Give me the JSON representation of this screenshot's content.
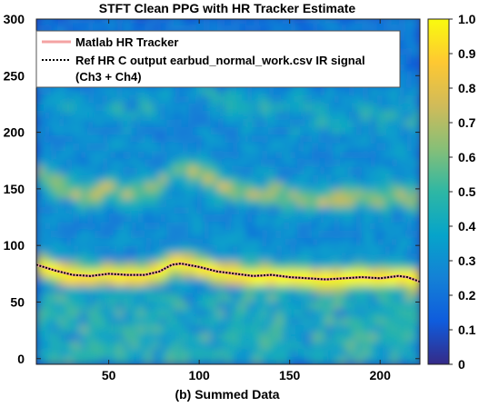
{
  "chart_data": {
    "type": "heatmap",
    "title": "STFT Clean PPG with HR Tracker Estimate",
    "xlabel": "(b) Summed Data",
    "ylabel": "",
    "xlim": [
      10,
      222
    ],
    "ylim": [
      -5,
      300
    ],
    "xticks": [
      50,
      100,
      150,
      200
    ],
    "yticks": [
      0,
      50,
      100,
      150,
      200,
      250,
      300
    ],
    "colorbar": {
      "range": [
        0,
        1
      ],
      "ticks": [
        0,
        0.1,
        0.2,
        0.3,
        0.4,
        0.5,
        0.6,
        0.7,
        0.8,
        0.9,
        1.0
      ],
      "tick_labels": [
        "0",
        "0.1",
        "0.2",
        "0.3",
        "0.4",
        "0.5",
        "0.6",
        "0.7",
        "0.8",
        "0.9",
        "1.0"
      ],
      "colormap": "parula"
    },
    "legend": {
      "placement": "top-left",
      "entries": [
        {
          "label": "Matlab HR Tracker",
          "color": "#f4a3a3",
          "style": "solid"
        },
        {
          "label": "Ref HR C output earbud_normal_work.csv IR signal",
          "label_line2": "(Ch3 + Ch4)",
          "color": "#000000",
          "style": "dotted"
        }
      ]
    },
    "series": [
      {
        "name": "Matlab HR Tracker",
        "x": [
          10,
          20,
          30,
          40,
          50,
          60,
          70,
          78,
          85,
          90,
          100,
          110,
          120,
          130,
          140,
          150,
          160,
          170,
          180,
          190,
          200,
          210,
          215,
          222
        ],
        "y": [
          83,
          78,
          74,
          73,
          75,
          74,
          74,
          77,
          83,
          84,
          81,
          77,
          75,
          73,
          74,
          72,
          71,
          70,
          71,
          72,
          71,
          73,
          72,
          68
        ]
      },
      {
        "name": "Ref HR C output earbud_normal_work.csv IR signal (Ch3 + Ch4)",
        "x": [
          10,
          20,
          30,
          40,
          50,
          60,
          70,
          78,
          85,
          90,
          100,
          110,
          120,
          130,
          140,
          150,
          160,
          170,
          180,
          190,
          200,
          210,
          215,
          222
        ],
        "y": [
          83,
          78,
          74,
          73,
          75,
          74,
          74,
          77,
          83,
          84,
          81,
          77,
          75,
          73,
          74,
          72,
          71,
          70,
          71,
          72,
          71,
          73,
          72,
          68
        ]
      }
    ]
  }
}
